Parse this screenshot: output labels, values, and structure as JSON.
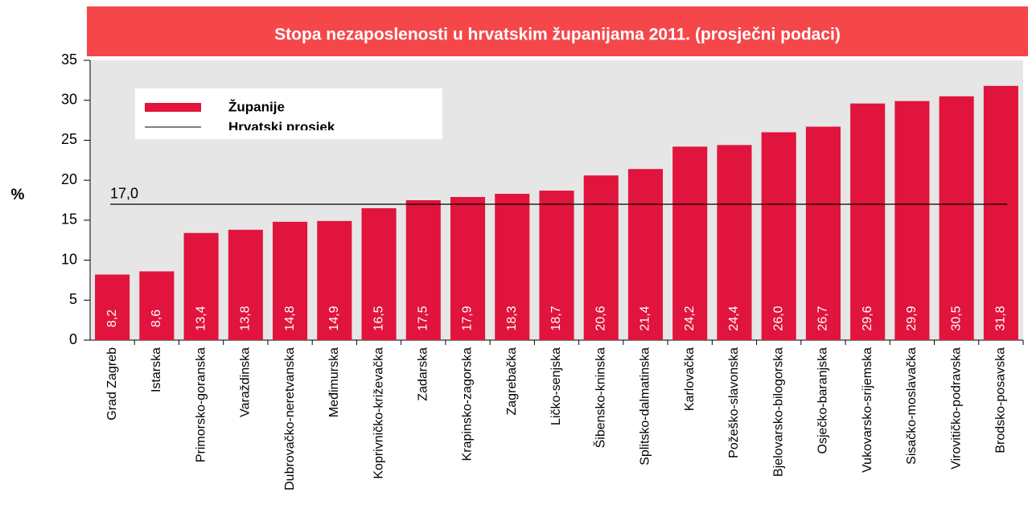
{
  "chart_data": {
    "type": "bar",
    "title": "Stopa nezaposlenosti u hrvatskim županijama 2011. (prosječni podaci)",
    "y_label": "%",
    "categories": [
      "Grad Zagreb",
      "Istarska",
      "Primorsko-goranska",
      "Varaždinska",
      "Dubrovačko-neretvanska",
      "Međimurska",
      "Koprivničko-križevačka",
      "Zadarska",
      "Krapinsko-zagorska",
      "Zagrebačka",
      "Ličko-senjska",
      "Šibensko-kninska",
      "Splitsko-dalmatinska",
      "Karlovačka",
      "Požeško-slavonska",
      "Bjelovarsko-bilogorska",
      "Osječko-baranjska",
      "Vukovarsko-srijemska",
      "Sisačko-moslavačka",
      "Virovitičko-podravska",
      "Brodsko-posavska"
    ],
    "series": [
      {
        "name": "Županije",
        "color": "#e0143c",
        "values": [
          8.2,
          8.6,
          13.4,
          13.8,
          14.8,
          14.9,
          16.5,
          17.5,
          17.9,
          18.3,
          18.7,
          20.6,
          21.4,
          24.2,
          24.4,
          26.0,
          26.7,
          29.6,
          29.9,
          30.5,
          31.8
        ],
        "value_labels": [
          "8,2",
          "8,6",
          "13,4",
          "13,8",
          "14,8",
          "14,9",
          "16,5",
          "17,5",
          "17,9",
          "18,3",
          "18,7",
          "20,6",
          "21,4",
          "24,2",
          "24,4",
          "26,0",
          "26,7",
          "29,6",
          "29,9",
          "30,5",
          "31,8"
        ]
      }
    ],
    "average": {
      "name": "Hrvatski prosjek",
      "value": 17.0,
      "label": "17,0",
      "color": "#000000"
    },
    "ylim": [
      0,
      35
    ],
    "yticks": [
      0,
      5,
      10,
      15,
      20,
      25,
      30,
      35
    ]
  }
}
